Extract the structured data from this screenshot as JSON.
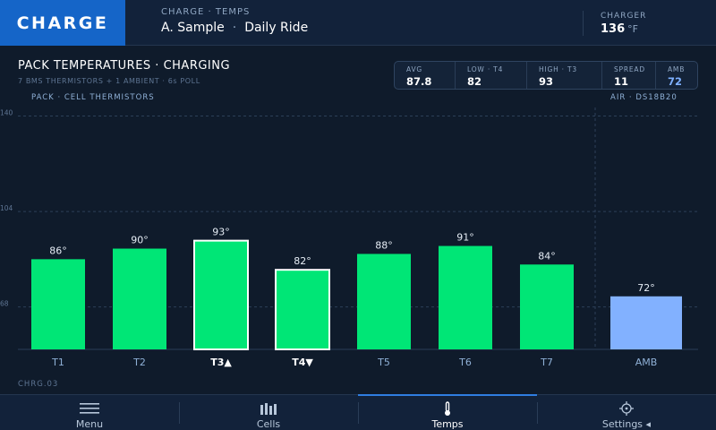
{
  "header": {
    "brand": "CHARGE",
    "breadcrumb": "CHARGE · TEMPS",
    "rider": "A. Sample",
    "separator": "·",
    "mode": "Daily Ride",
    "charger_label": "CHARGER",
    "charger_value": "136",
    "charger_unit": "°F"
  },
  "title": {
    "main": "PACK TEMPERATURES · CHARGING",
    "sub": "7 BMS THERMISTORS + 1 AMBIENT · 6s POLL",
    "section_left": "PACK · CELL THERMISTORS",
    "section_right": "AIR · DS18B20"
  },
  "stats": [
    {
      "label": "AVG",
      "value": "87.8",
      "accent": false
    },
    {
      "label": "LOW · T4",
      "value": "82",
      "accent": false
    },
    {
      "label": "HIGH · T3",
      "value": "93",
      "accent": false
    },
    {
      "label": "SPREAD",
      "value": "11",
      "accent": false
    },
    {
      "label": "AMB",
      "value": "72",
      "accent": true
    }
  ],
  "chart_data": {
    "type": "bar",
    "categories": [
      "T1",
      "T2",
      "T3▲",
      "T4▼",
      "T5",
      "T6",
      "T7",
      "AMB"
    ],
    "values": [
      86,
      90,
      93,
      82,
      88,
      91,
      84,
      72
    ],
    "data_labels": [
      "86°",
      "90°",
      "93°",
      "82°",
      "88°",
      "91°",
      "84°",
      "72°"
    ],
    "highlight": [
      false,
      false,
      true,
      true,
      false,
      false,
      false,
      false
    ],
    "ambient_index": 7,
    "y_ticks": [
      68,
      104,
      140
    ],
    "y_tick_labels": [
      "68",
      "104",
      "140"
    ],
    "grid": true,
    "colors": {
      "cell": "#00e676",
      "ambient": "#82b1ff",
      "highlight_border": "#ffffff"
    }
  },
  "footer_code": "CHRG.03",
  "nav": [
    {
      "label": "Menu",
      "icon": "menu-icon",
      "active": false
    },
    {
      "label": "Cells",
      "icon": "bars-icon",
      "active": false
    },
    {
      "label": "Temps",
      "icon": "thermometer-icon",
      "active": true
    },
    {
      "label": "Settings ◂",
      "icon": "crosshair-icon",
      "active": false
    }
  ]
}
